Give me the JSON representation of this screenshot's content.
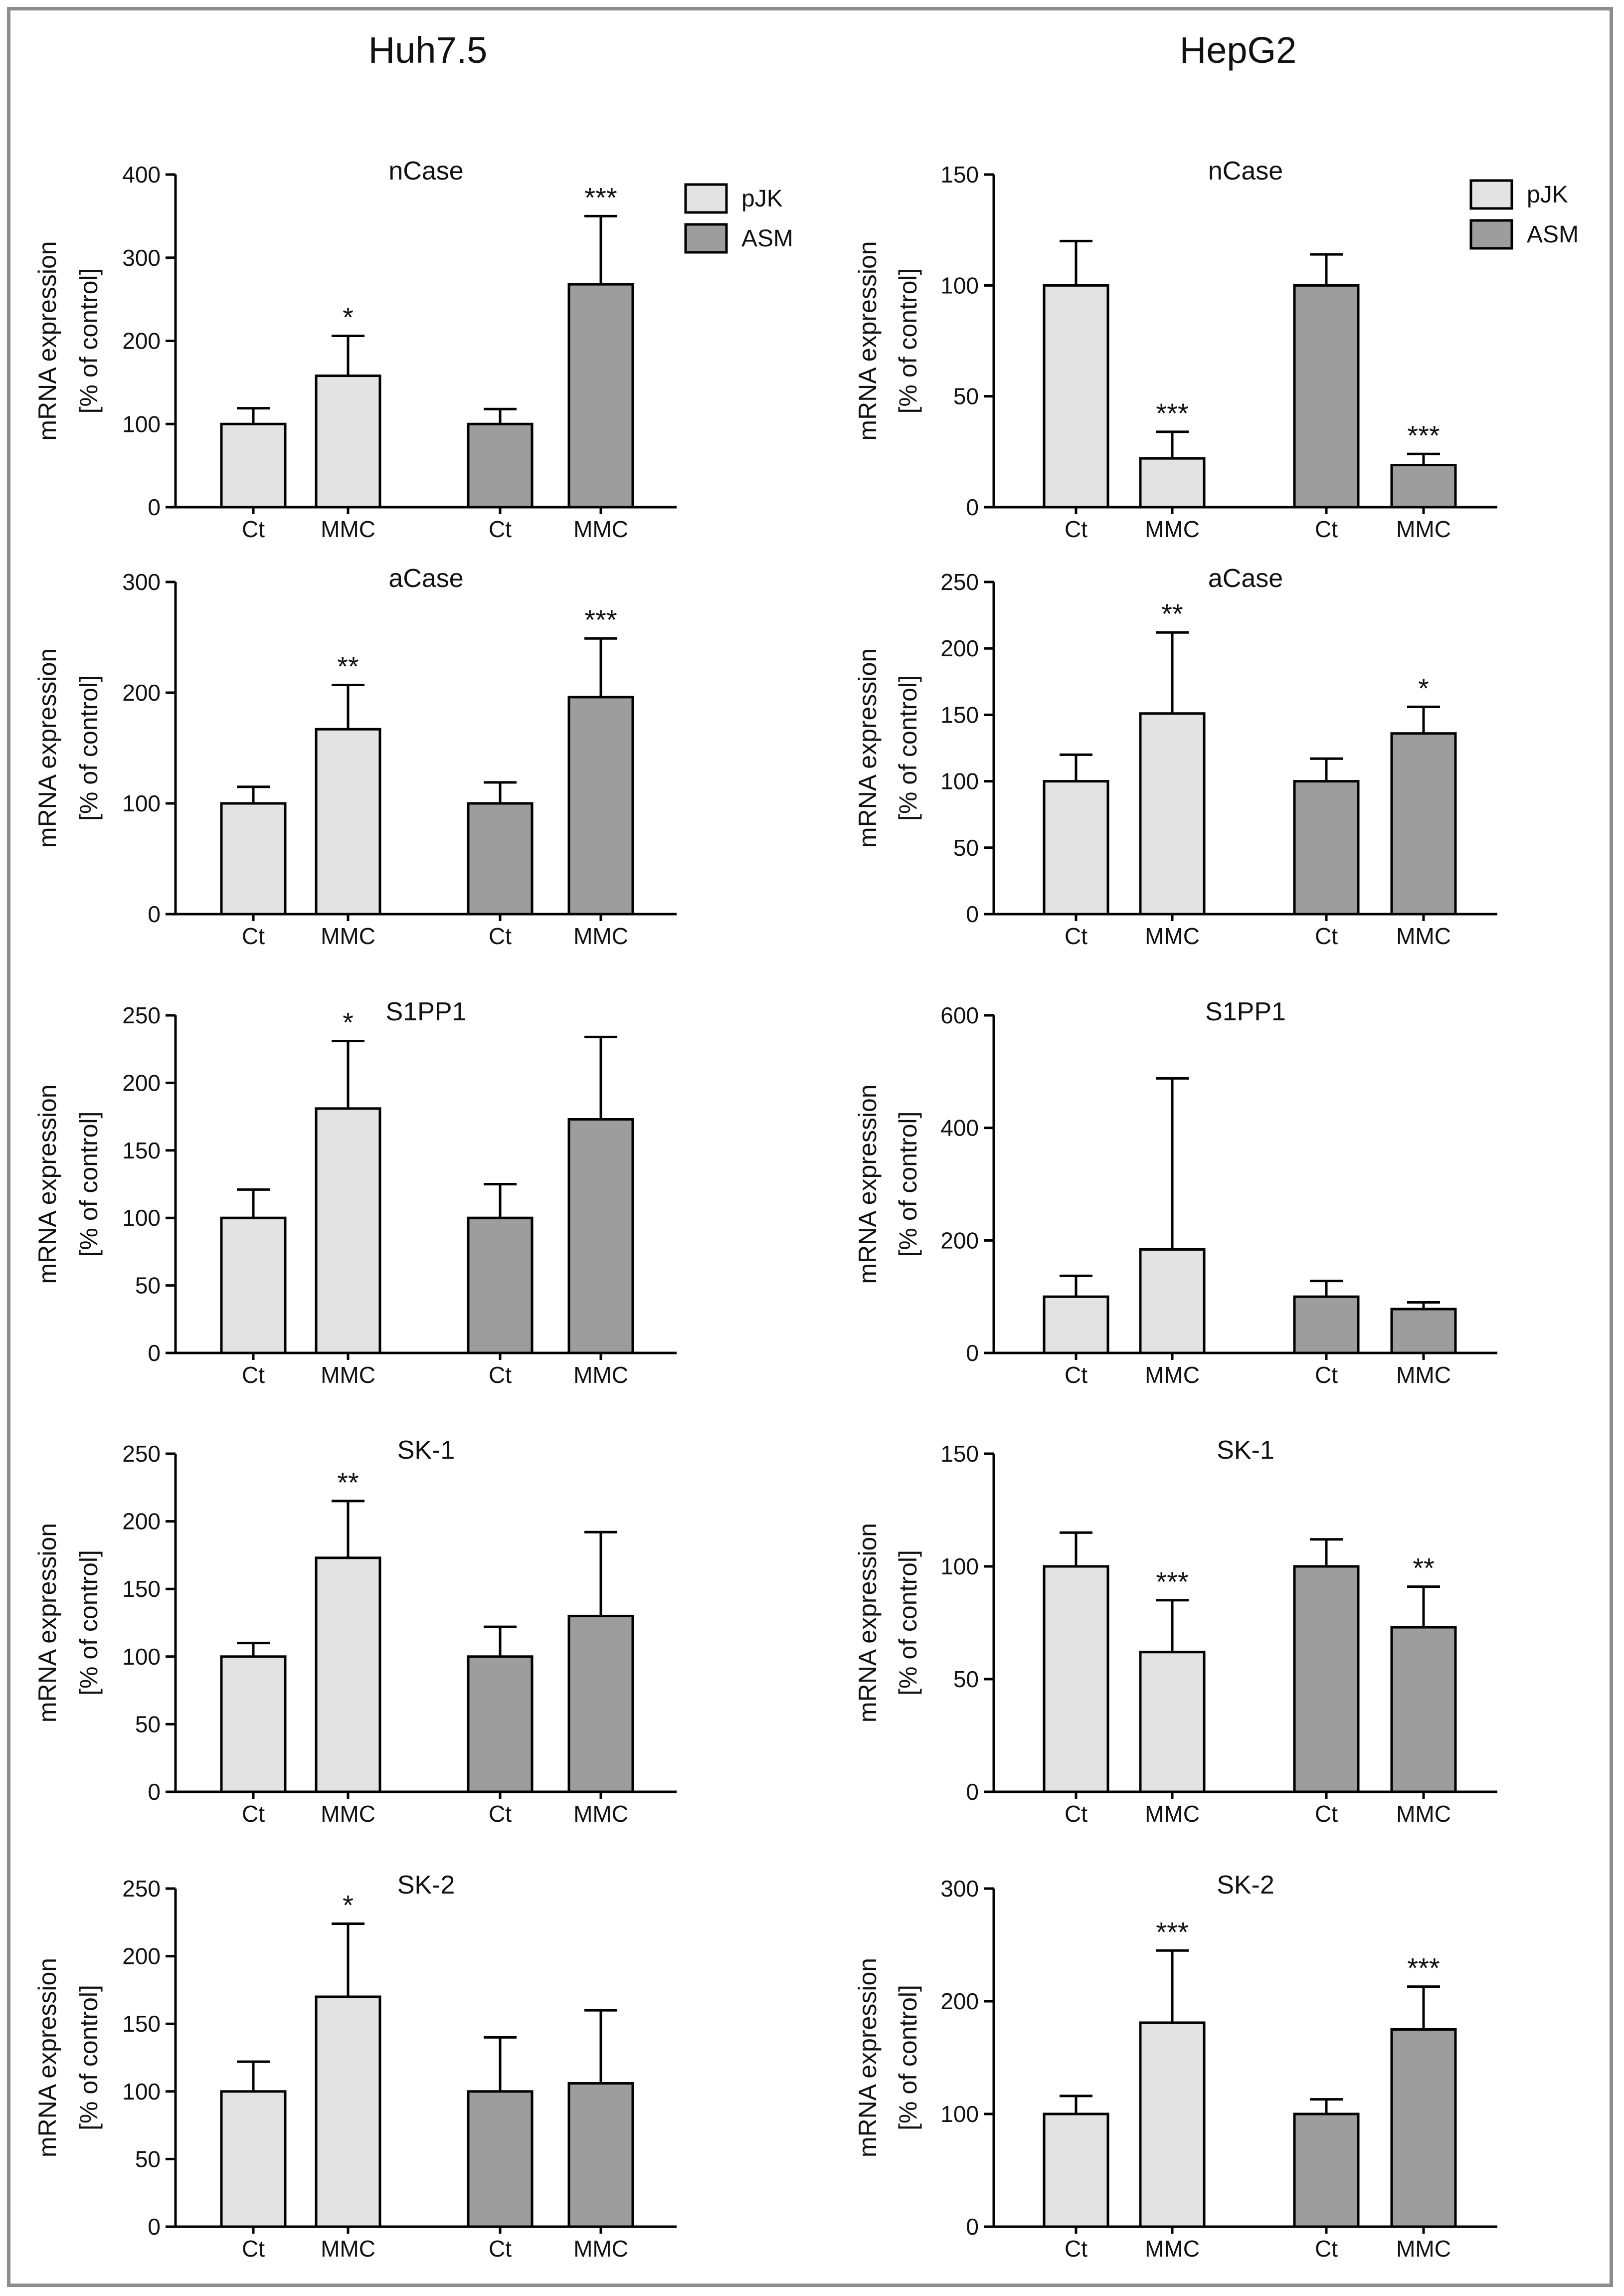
{
  "columns": [
    {
      "id": "huh",
      "title": "Huh7.5"
    },
    {
      "id": "hep",
      "title": "HepG2"
    }
  ],
  "legend": [
    {
      "label": "pJK",
      "color": "#e3e3e3"
    },
    {
      "label": "ASM",
      "color": "#9d9d9d"
    }
  ],
  "y_label_line1": "mRNA expression",
  "y_label_line2": "[% of control]",
  "categories": [
    "Ct",
    "MMC",
    "Ct",
    "MMC"
  ],
  "colors": {
    "pJK": "#e3e3e3",
    "ASM": "#9d9d9d",
    "stroke": "#000000"
  },
  "chart_data": [
    {
      "type": "bar",
      "column": "Huh7.5",
      "title": "nCase",
      "ylim": [
        0,
        400
      ],
      "yticks": [
        0,
        100,
        200,
        300,
        400
      ],
      "categories": [
        "Ct",
        "MMC",
        "Ct",
        "MMC"
      ],
      "groups": [
        "pJK",
        "pJK",
        "ASM",
        "ASM"
      ],
      "values": [
        100,
        158,
        100,
        268
      ],
      "errors": [
        19,
        48,
        18,
        82
      ],
      "significance": [
        "",
        "*",
        "",
        "***"
      ],
      "legend": true
    },
    {
      "type": "bar",
      "column": "HepG2",
      "title": "nCase",
      "ylim": [
        0,
        150
      ],
      "yticks": [
        0,
        50,
        100,
        150
      ],
      "categories": [
        "Ct",
        "MMC",
        "Ct",
        "MMC"
      ],
      "groups": [
        "pJK",
        "pJK",
        "ASM",
        "ASM"
      ],
      "values": [
        100,
        22,
        100,
        19
      ],
      "errors": [
        20,
        12,
        14,
        5
      ],
      "significance": [
        "",
        "***",
        "",
        "***"
      ],
      "legend": true
    },
    {
      "type": "bar",
      "column": "Huh7.5",
      "title": "aCase",
      "ylim": [
        0,
        300
      ],
      "yticks": [
        0,
        100,
        200,
        300
      ],
      "categories": [
        "Ct",
        "MMC",
        "Ct",
        "MMC"
      ],
      "groups": [
        "pJK",
        "pJK",
        "ASM",
        "ASM"
      ],
      "values": [
        100,
        167,
        100,
        196
      ],
      "errors": [
        15,
        40,
        19,
        53
      ],
      "significance": [
        "",
        "**",
        "",
        "***"
      ]
    },
    {
      "type": "bar",
      "column": "HepG2",
      "title": "aCase",
      "ylim": [
        0,
        250
      ],
      "yticks": [
        0,
        50,
        100,
        150,
        200,
        250
      ],
      "categories": [
        "Ct",
        "MMC",
        "Ct",
        "MMC"
      ],
      "groups": [
        "pJK",
        "pJK",
        "ASM",
        "ASM"
      ],
      "values": [
        100,
        151,
        100,
        136
      ],
      "errors": [
        20,
        61,
        17,
        20
      ],
      "significance": [
        "",
        "**",
        "",
        "*"
      ]
    },
    {
      "type": "bar",
      "column": "Huh7.5",
      "title": "S1PP1",
      "ylim": [
        0,
        250
      ],
      "yticks": [
        0,
        50,
        100,
        150,
        200,
        250
      ],
      "categories": [
        "Ct",
        "MMC",
        "Ct",
        "MMC"
      ],
      "groups": [
        "pJK",
        "pJK",
        "ASM",
        "ASM"
      ],
      "values": [
        100,
        181,
        100,
        173
      ],
      "errors": [
        21,
        50,
        25,
        61
      ],
      "significance": [
        "",
        "*",
        "",
        ""
      ]
    },
    {
      "type": "bar",
      "column": "HepG2",
      "title": "S1PP1",
      "ylim": [
        0,
        600
      ],
      "yticks": [
        0,
        200,
        400,
        600
      ],
      "categories": [
        "Ct",
        "MMC",
        "Ct",
        "MMC"
      ],
      "groups": [
        "pJK",
        "pJK",
        "ASM",
        "ASM"
      ],
      "values": [
        100,
        184,
        100,
        78
      ],
      "errors": [
        37,
        304,
        28,
        12
      ],
      "significance": [
        "",
        "",
        "",
        ""
      ]
    },
    {
      "type": "bar",
      "column": "Huh7.5",
      "title": "SK-1",
      "ylim": [
        0,
        250
      ],
      "yticks": [
        0,
        50,
        100,
        150,
        200,
        250
      ],
      "categories": [
        "Ct",
        "MMC",
        "Ct",
        "MMC"
      ],
      "groups": [
        "pJK",
        "pJK",
        "ASM",
        "ASM"
      ],
      "values": [
        100,
        173,
        100,
        130
      ],
      "errors": [
        10,
        42,
        22,
        62
      ],
      "significance": [
        "",
        "**",
        "",
        ""
      ]
    },
    {
      "type": "bar",
      "column": "HepG2",
      "title": "SK-1",
      "ylim": [
        0,
        150
      ],
      "yticks": [
        0,
        50,
        100,
        150
      ],
      "categories": [
        "Ct",
        "MMC",
        "Ct",
        "MMC"
      ],
      "groups": [
        "pJK",
        "pJK",
        "ASM",
        "ASM"
      ],
      "values": [
        100,
        62,
        100,
        73
      ],
      "errors": [
        15,
        23,
        12,
        18
      ],
      "significance": [
        "",
        "***",
        "",
        "**"
      ]
    },
    {
      "type": "bar",
      "column": "Huh7.5",
      "title": "SK-2",
      "ylim": [
        0,
        250
      ],
      "yticks": [
        0,
        50,
        100,
        150,
        200,
        250
      ],
      "categories": [
        "Ct",
        "MMC",
        "Ct",
        "MMC"
      ],
      "groups": [
        "pJK",
        "pJK",
        "ASM",
        "ASM"
      ],
      "values": [
        100,
        170,
        100,
        106
      ],
      "errors": [
        22,
        54,
        40,
        54
      ],
      "significance": [
        "",
        "*",
        "",
        ""
      ]
    },
    {
      "type": "bar",
      "column": "HepG2",
      "title": "SK-2",
      "ylim": [
        0,
        300
      ],
      "yticks": [
        0,
        100,
        200,
        300
      ],
      "categories": [
        "Ct",
        "MMC",
        "Ct",
        "MMC"
      ],
      "groups": [
        "pJK",
        "pJK",
        "ASM",
        "ASM"
      ],
      "values": [
        100,
        181,
        100,
        175
      ],
      "errors": [
        16,
        64,
        13,
        38
      ],
      "significance": [
        "",
        "***",
        "",
        "***"
      ]
    }
  ]
}
